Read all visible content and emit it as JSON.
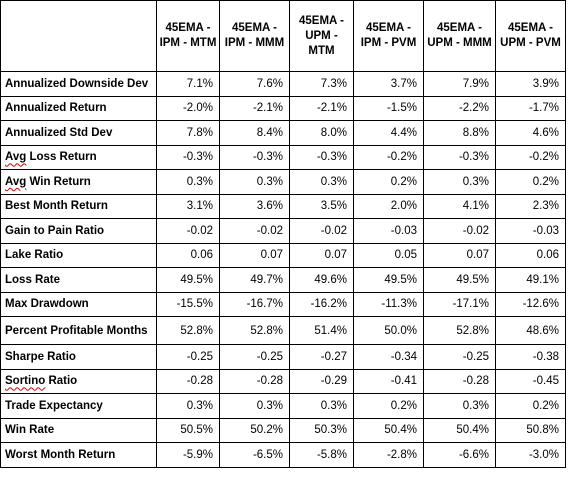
{
  "table": {
    "corner": "",
    "columns": [
      "45EMA - IPM - MTM",
      "45EMA - IPM - MMM",
      "45EMA - UPM - MTM",
      "45EMA - IPM - PVM",
      "45EMA - UPM - MMM",
      "45EMA - UPM - PVM"
    ],
    "rows": [
      {
        "label": "Annualized Downside Dev",
        "values": [
          "7.1%",
          "7.6%",
          "7.3%",
          "3.7%",
          "7.9%",
          "3.9%"
        ]
      },
      {
        "label": "Annualized Return",
        "values": [
          "-2.0%",
          "-2.1%",
          "-2.1%",
          "-1.5%",
          "-2.2%",
          "-1.7%"
        ]
      },
      {
        "label": "Annualized Std Dev",
        "values": [
          "7.8%",
          "8.4%",
          "8.0%",
          "4.4%",
          "8.8%",
          "4.6%"
        ]
      },
      {
        "label": "Avg Loss Return",
        "values": [
          "-0.3%",
          "-0.3%",
          "-0.3%",
          "-0.2%",
          "-0.3%",
          "-0.2%"
        ]
      },
      {
        "label": "Avg Win Return",
        "values": [
          "0.3%",
          "0.3%",
          "0.3%",
          "0.2%",
          "0.3%",
          "0.2%"
        ]
      },
      {
        "label": "Best Month Return",
        "values": [
          "3.1%",
          "3.6%",
          "3.5%",
          "2.0%",
          "4.1%",
          "2.3%"
        ]
      },
      {
        "label": "Gain to Pain Ratio",
        "values": [
          "-0.02",
          "-0.02",
          "-0.02",
          "-0.03",
          "-0.02",
          "-0.03"
        ]
      },
      {
        "label": "Lake Ratio",
        "values": [
          "0.06",
          "0.07",
          "0.07",
          "0.05",
          "0.07",
          "0.06"
        ]
      },
      {
        "label": "Loss Rate",
        "values": [
          "49.5%",
          "49.7%",
          "49.6%",
          "49.5%",
          "49.5%",
          "49.1%"
        ]
      },
      {
        "label": "Max Drawdown",
        "values": [
          "-15.5%",
          "-16.7%",
          "-16.2%",
          "-11.3%",
          "-17.1%",
          "-12.6%"
        ]
      },
      {
        "label": "Percent Profitable Months",
        "values": [
          "52.8%",
          "52.8%",
          "51.4%",
          "50.0%",
          "52.8%",
          "48.6%"
        ]
      },
      {
        "label": "Sharpe Ratio",
        "values": [
          "-0.25",
          "-0.25",
          "-0.27",
          "-0.34",
          "-0.25",
          "-0.38"
        ]
      },
      {
        "label": "Sortino Ratio",
        "values": [
          "-0.28",
          "-0.28",
          "-0.29",
          "-0.41",
          "-0.28",
          "-0.45"
        ]
      },
      {
        "label": "Trade Expectancy",
        "values": [
          "0.3%",
          "0.3%",
          "0.3%",
          "0.2%",
          "0.3%",
          "0.2%"
        ]
      },
      {
        "label": "Win Rate",
        "values": [
          "50.5%",
          "50.2%",
          "50.3%",
          "50.4%",
          "50.4%",
          "50.8%"
        ]
      },
      {
        "label": "Worst Month Return",
        "values": [
          "-5.9%",
          "-6.5%",
          "-5.8%",
          "-2.8%",
          "-6.6%",
          "-3.0%"
        ]
      }
    ],
    "spellcheck_words": [
      "Avg",
      "Sortino"
    ],
    "colors": {
      "border": "#000000",
      "spellcheck_underline": "#d00000",
      "background": "#ffffff"
    }
  }
}
